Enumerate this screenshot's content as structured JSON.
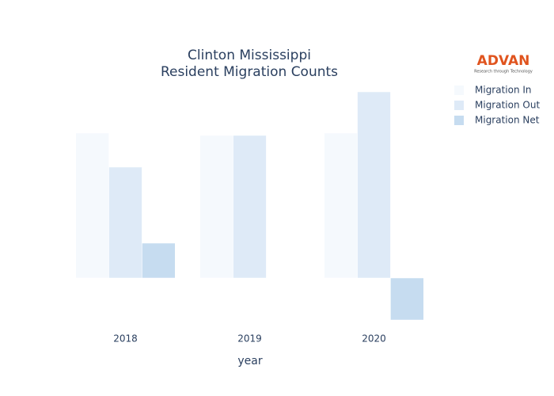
{
  "chart_data": {
    "type": "bar",
    "title": [
      "Clinton Mississippi",
      "Resident Migration Counts"
    ],
    "x_label": "year",
    "categories": [
      "2018",
      "2019",
      "2020"
    ],
    "series": [
      {
        "name": "Migration In",
        "color": "#f5f9fd",
        "values": [
          183,
          180,
          183
        ]
      },
      {
        "name": "Migration Out",
        "color": "#deeaf7",
        "values": [
          140,
          180,
          235
        ]
      },
      {
        "name": "Migration Net",
        "color": "#c6dcf0",
        "values": [
          44,
          0,
          -53
        ]
      }
    ],
    "ylim": [
      -65,
      245
    ],
    "grid": false,
    "legend": "right"
  },
  "logo": {
    "name": "ADVAN",
    "tagline": "Research through Technology"
  }
}
